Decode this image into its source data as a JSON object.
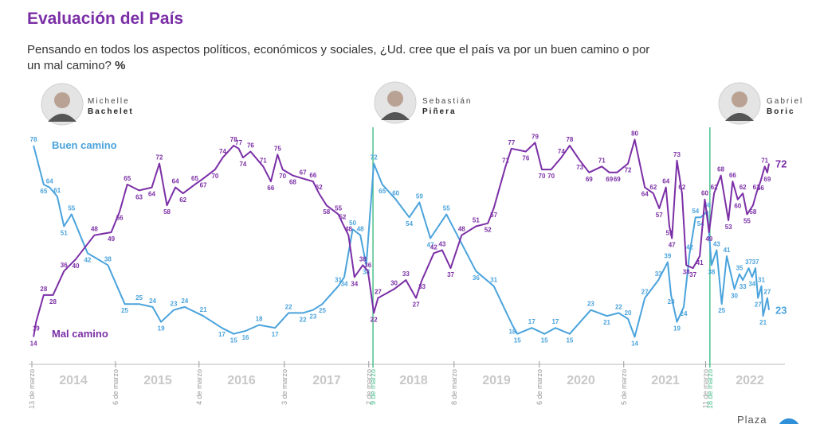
{
  "chart_data": {
    "type": "line",
    "title": "Evaluación del País",
    "subtitle": "Pensando en todos los aspectos políticos, económicos y sociales, ¿Ud. cree que el país va por un buen camino o por un mal camino?",
    "unit": "%",
    "presidents": [
      {
        "first": "Michelle",
        "last": "Bachelet"
      },
      {
        "first": "Sebastián",
        "last": "Piñera"
      },
      {
        "first": "Gabriel",
        "last": "Boric"
      }
    ],
    "year_labels": [
      "2014",
      "2015",
      "2016",
      "2017",
      "2018",
      "2019",
      "2020",
      "2021",
      "2022"
    ],
    "date_markers": [
      {
        "label": "13 de marzo",
        "x": 2014.0,
        "color": "#999999"
      },
      {
        "label": "6 de marzo",
        "x": 2014.99,
        "color": "#999999"
      },
      {
        "label": "4 de marzo",
        "x": 2015.98,
        "color": "#999999"
      },
      {
        "label": "3 de marzo",
        "x": 2016.99,
        "color": "#999999"
      },
      {
        "label": "2 de marzo",
        "x": 2017.99,
        "color": "#999999"
      },
      {
        "label": "9 de marzo",
        "x": 2018.04,
        "color": "#4cc08e"
      },
      {
        "label": "8 de marzo",
        "x": 2019.0,
        "color": "#999999"
      },
      {
        "label": "6 de marzo",
        "x": 2020.01,
        "color": "#999999"
      },
      {
        "label": "5 de marzo",
        "x": 2021.01,
        "color": "#999999"
      },
      {
        "label": "11 de marzo",
        "x": 2021.98,
        "color": "#999999"
      },
      {
        "label": "18 de marzo",
        "x": 2022.03,
        "color": "#4cc08e"
      }
    ],
    "xlim": [
      2014.0,
      2022.73
    ],
    "ylim": [
      12,
      82
    ],
    "series": [
      {
        "name": "Buen camino",
        "color": "#4aa3dc",
        "x": [
          2014.02,
          2014.14,
          2014.21,
          2014.3,
          2014.38,
          2014.47,
          2014.66,
          2014.9,
          2015.1,
          2015.27,
          2015.43,
          2015.53,
          2015.68,
          2015.81,
          2016.03,
          2016.25,
          2016.39,
          2016.53,
          2016.69,
          2016.88,
          2017.04,
          2017.21,
          2017.33,
          2017.44,
          2017.63,
          2017.7,
          2017.8,
          2017.89,
          2017.96,
          2018.05,
          2018.15,
          2018.31,
          2018.47,
          2018.59,
          2018.72,
          2018.91,
          2019.26,
          2019.47,
          2019.69,
          2019.75,
          2019.92,
          2020.07,
          2020.2,
          2020.37,
          2020.62,
          2020.81,
          2020.95,
          2021.06,
          2021.14,
          2021.26,
          2021.42,
          2021.53,
          2021.57,
          2021.64,
          2021.72,
          2021.79,
          2021.86,
          2021.92,
          2022.0,
          2022.05,
          2022.11,
          2022.17,
          2022.23,
          2022.32,
          2022.38,
          2022.42,
          2022.49,
          2022.53,
          2022.57,
          2022.6,
          2022.64,
          2022.66,
          2022.71,
          2022.73
        ],
        "values": [
          78,
          65,
          64,
          61,
          51,
          55,
          42,
          38,
          25,
          25,
          24,
          19,
          23,
          24,
          21,
          17,
          15,
          16,
          18,
          17,
          22,
          22,
          23,
          25,
          31,
          34,
          50,
          48,
          38,
          72,
          65,
          60,
          54,
          59,
          47,
          55,
          36,
          31,
          18,
          15,
          17,
          15,
          17,
          15,
          23,
          21,
          22,
          20,
          14,
          27,
          33,
          39,
          28,
          19,
          24,
          42,
          54,
          54,
          56,
          38,
          43,
          25,
          41,
          30,
          35,
          33,
          37,
          34,
          37,
          27,
          31,
          21,
          27,
          23
        ]
      },
      {
        "name": "Mal camino",
        "color": "#7b2fa6",
        "x": [
          2014.02,
          2014.05,
          2014.14,
          2014.25,
          2014.38,
          2014.52,
          2014.74,
          2014.94,
          2015.04,
          2015.13,
          2015.27,
          2015.42,
          2015.51,
          2015.6,
          2015.7,
          2015.79,
          2015.93,
          2016.03,
          2016.17,
          2016.26,
          2016.39,
          2016.45,
          2016.5,
          2016.59,
          2016.74,
          2016.83,
          2016.91,
          2016.97,
          2017.09,
          2017.21,
          2017.33,
          2017.4,
          2017.49,
          2017.63,
          2017.68,
          2017.75,
          2017.82,
          2017.92,
          2017.98,
          2018.05,
          2018.1,
          2018.29,
          2018.43,
          2018.55,
          2018.62,
          2018.76,
          2018.86,
          2018.96,
          2019.09,
          2019.26,
          2019.4,
          2019.47,
          2019.61,
          2019.68,
          2019.85,
          2019.96,
          2020.04,
          2020.15,
          2020.27,
          2020.37,
          2020.49,
          2020.6,
          2020.75,
          2020.84,
          2020.93,
          2021.06,
          2021.14,
          2021.26,
          2021.36,
          2021.43,
          2021.51,
          2021.55,
          2021.58,
          2021.64,
          2021.7,
          2021.75,
          2021.83,
          2021.91,
          2021.97,
          2022.02,
          2022.08,
          2022.16,
          2022.25,
          2022.3,
          2022.36,
          2022.42,
          2022.47,
          2022.54,
          2022.58,
          2022.63,
          2022.68,
          2022.71,
          2022.73
        ],
        "values": [
          14,
          19,
          28,
          28,
          36,
          40,
          48,
          49,
          56,
          65,
          63,
          64,
          72,
          58,
          64,
          62,
          65,
          67,
          70,
          74,
          78,
          77,
          74,
          76,
          71,
          66,
          75,
          70,
          68,
          67,
          66,
          62,
          58,
          55,
          52,
          48,
          34,
          38,
          36,
          22,
          27,
          30,
          33,
          27,
          33,
          42,
          43,
          37,
          48,
          51,
          52,
          57,
          71,
          77,
          76,
          79,
          70,
          70,
          74,
          78,
          73,
          69,
          71,
          69,
          69,
          72,
          80,
          64,
          62,
          57,
          64,
          51,
          47,
          73,
          62,
          38,
          37,
          41,
          60,
          49,
          62,
          68,
          53,
          66,
          60,
          62,
          55,
          58,
          62,
          66,
          71,
          69,
          72
        ]
      }
    ],
    "logo": "Plaza"
  }
}
